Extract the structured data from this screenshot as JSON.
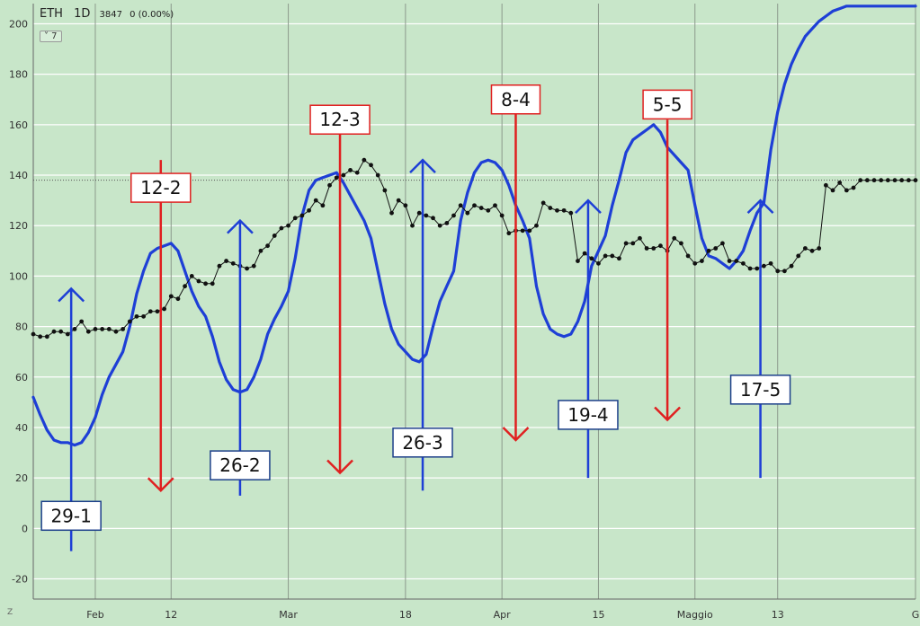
{
  "header": {
    "symbol": "ETH",
    "timeframe": "1D",
    "value": "3847",
    "change": "0 (0.00%)"
  },
  "indicator_toggle": "˅ 7",
  "z_button": "Z",
  "chart_data": {
    "type": "line",
    "ylim": [
      -28,
      208
    ],
    "yticks": [
      -20,
      0,
      20,
      40,
      60,
      80,
      100,
      120,
      140,
      160,
      180,
      200
    ],
    "xlim": [
      0,
      128
    ],
    "xticks": [
      {
        "pos": 9,
        "label": "Feb"
      },
      {
        "pos": 20,
        "label": "12"
      },
      {
        "pos": 37,
        "label": "Mar"
      },
      {
        "pos": 54,
        "label": "18"
      },
      {
        "pos": 68,
        "label": "Apr"
      },
      {
        "pos": 82,
        "label": "15"
      },
      {
        "pos": 96,
        "label": "Maggio"
      },
      {
        "pos": 108,
        "label": "13"
      },
      {
        "pos": 128,
        "label": "G"
      }
    ],
    "reference_level": 138,
    "colors": {
      "price": "#111111",
      "oscillator": "#1e3fd6",
      "up": "#1e3fd6",
      "down": "#e02020",
      "grid": "#ffffff",
      "vgrid": "#8c9a8c"
    },
    "series": [
      {
        "key": "price",
        "x": [
          0,
          1,
          2,
          3,
          4,
          5,
          6,
          7,
          8,
          9,
          10,
          11,
          12,
          13,
          14,
          15,
          16,
          17,
          18,
          19,
          20,
          21,
          22,
          23,
          24,
          25,
          26,
          27,
          28,
          29,
          30,
          31,
          32,
          33,
          34,
          35,
          36,
          37,
          38,
          39,
          40,
          41,
          42,
          43,
          44,
          45,
          46,
          47,
          48,
          49,
          50,
          51,
          52,
          53,
          54,
          55,
          56,
          57,
          58,
          59,
          60,
          61,
          62,
          63,
          64,
          65,
          66,
          67,
          68,
          69,
          70,
          71,
          72,
          73,
          74,
          75,
          76,
          77,
          78,
          79,
          80,
          81,
          82,
          83,
          84,
          85,
          86,
          87,
          88,
          89,
          90,
          91,
          92,
          93,
          94,
          95,
          96,
          97,
          98,
          99,
          100,
          101,
          102,
          103,
          104,
          105,
          106,
          107,
          108,
          109,
          110,
          111,
          112,
          113,
          114,
          115,
          116,
          117,
          118,
          119,
          120,
          121,
          122,
          123,
          124,
          125,
          126,
          127,
          128
        ],
        "values": [
          77,
          76,
          76,
          78,
          78,
          77,
          79,
          82,
          78,
          79,
          79,
          79,
          78,
          79,
          82,
          84,
          84,
          86,
          86,
          87,
          92,
          91,
          96,
          100,
          98,
          97,
          97,
          104,
          106,
          105,
          104,
          103,
          104,
          110,
          112,
          116,
          119,
          120,
          123,
          124,
          126,
          130,
          128,
          136,
          139,
          140,
          142,
          141,
          146,
          144,
          140,
          134,
          125,
          130,
          128,
          120,
          125,
          124,
          123,
          120,
          121,
          124,
          128,
          125,
          128,
          127,
          126,
          128,
          124,
          117,
          118,
          118,
          118,
          120,
          129,
          127,
          126,
          126,
          125,
          106,
          109,
          107,
          105,
          108,
          108,
          107,
          113,
          113,
          115,
          111,
          111,
          112,
          110,
          115,
          113,
          108,
          105,
          106,
          110,
          111,
          113,
          106,
          106,
          105,
          103,
          103,
          104,
          105,
          102,
          102,
          104,
          108,
          111,
          110,
          111,
          136,
          134,
          137,
          134,
          135,
          138,
          138,
          138,
          138,
          138,
          138,
          138,
          138,
          138
        ]
      },
      {
        "key": "oscillator",
        "x": [
          0,
          1,
          2,
          3,
          4,
          5,
          6,
          7,
          8,
          9,
          10,
          11,
          12,
          13,
          14,
          15,
          16,
          17,
          18,
          19,
          20,
          21,
          22,
          23,
          24,
          25,
          26,
          27,
          28,
          29,
          30,
          31,
          32,
          33,
          34,
          35,
          36,
          37,
          38,
          39,
          40,
          41,
          42,
          43,
          44,
          45,
          46,
          47,
          48,
          49,
          50,
          51,
          52,
          53,
          54,
          55,
          56,
          57,
          58,
          59,
          60,
          61,
          62,
          63,
          64,
          65,
          66,
          67,
          68,
          69,
          70,
          71,
          72,
          73,
          74,
          75,
          76,
          77,
          78,
          79,
          80,
          81,
          82,
          83,
          84,
          85,
          86,
          87,
          88,
          89,
          90,
          91,
          92,
          93,
          94,
          95,
          96,
          97,
          98,
          99,
          100,
          101,
          102,
          103,
          104,
          105,
          106,
          107,
          108,
          109,
          110,
          111,
          112,
          113,
          114,
          115,
          116,
          117,
          118,
          119,
          120,
          121,
          122,
          123,
          124,
          125,
          126,
          127,
          128
        ],
        "values": [
          52,
          45,
          39,
          35,
          34,
          34,
          33,
          34,
          38,
          44,
          53,
          60,
          65,
          70,
          80,
          93,
          102,
          109,
          111,
          112,
          113,
          110,
          102,
          94,
          88,
          84,
          76,
          66,
          59,
          55,
          54,
          55,
          60,
          67,
          77,
          83,
          88,
          94,
          107,
          124,
          134,
          138,
          139,
          140,
          141,
          137,
          132,
          127,
          122,
          115,
          102,
          89,
          79,
          73,
          70,
          67,
          66,
          69,
          80,
          90,
          96,
          102,
          122,
          133,
          141,
          145,
          146,
          145,
          142,
          136,
          128,
          122,
          115,
          96,
          85,
          79,
          77,
          76,
          77,
          82,
          90,
          104,
          110,
          116,
          128,
          138,
          149,
          154,
          156,
          158,
          160,
          157,
          151,
          148,
          145,
          142,
          128,
          115,
          108,
          107,
          105,
          103,
          106,
          110,
          118,
          125,
          129,
          150,
          165,
          176,
          184,
          190,
          195,
          198,
          201,
          203,
          205,
          206,
          207,
          207,
          207,
          207,
          207,
          207,
          207,
          207,
          207,
          207,
          207
        ]
      }
    ],
    "signals": [
      {
        "x": 5.5,
        "label": "29-1",
        "direction": "up",
        "from": -9,
        "to": 95,
        "label_y": 5
      },
      {
        "x": 18.5,
        "label": "12-2",
        "direction": "down",
        "from": 146,
        "to": 15,
        "label_y": 135
      },
      {
        "x": 30,
        "label": "26-2",
        "direction": "up",
        "from": 13,
        "to": 122,
        "label_y": 25
      },
      {
        "x": 44.5,
        "label": "12-3",
        "direction": "down",
        "from": 162,
        "to": 22,
        "label_y": 162
      },
      {
        "x": 56.5,
        "label": "26-3",
        "direction": "up",
        "from": 15,
        "to": 146,
        "label_y": 34
      },
      {
        "x": 70,
        "label": "8-4",
        "direction": "down",
        "from": 168,
        "to": 35,
        "label_y": 170
      },
      {
        "x": 80.5,
        "label": "19-4",
        "direction": "up",
        "from": 20,
        "to": 130,
        "label_y": 45
      },
      {
        "x": 92,
        "label": "5-5",
        "direction": "down",
        "from": 162,
        "to": 43,
        "label_y": 168
      },
      {
        "x": 105.5,
        "label": "17-5",
        "direction": "up",
        "from": 20,
        "to": 130,
        "label_y": 55
      }
    ]
  }
}
